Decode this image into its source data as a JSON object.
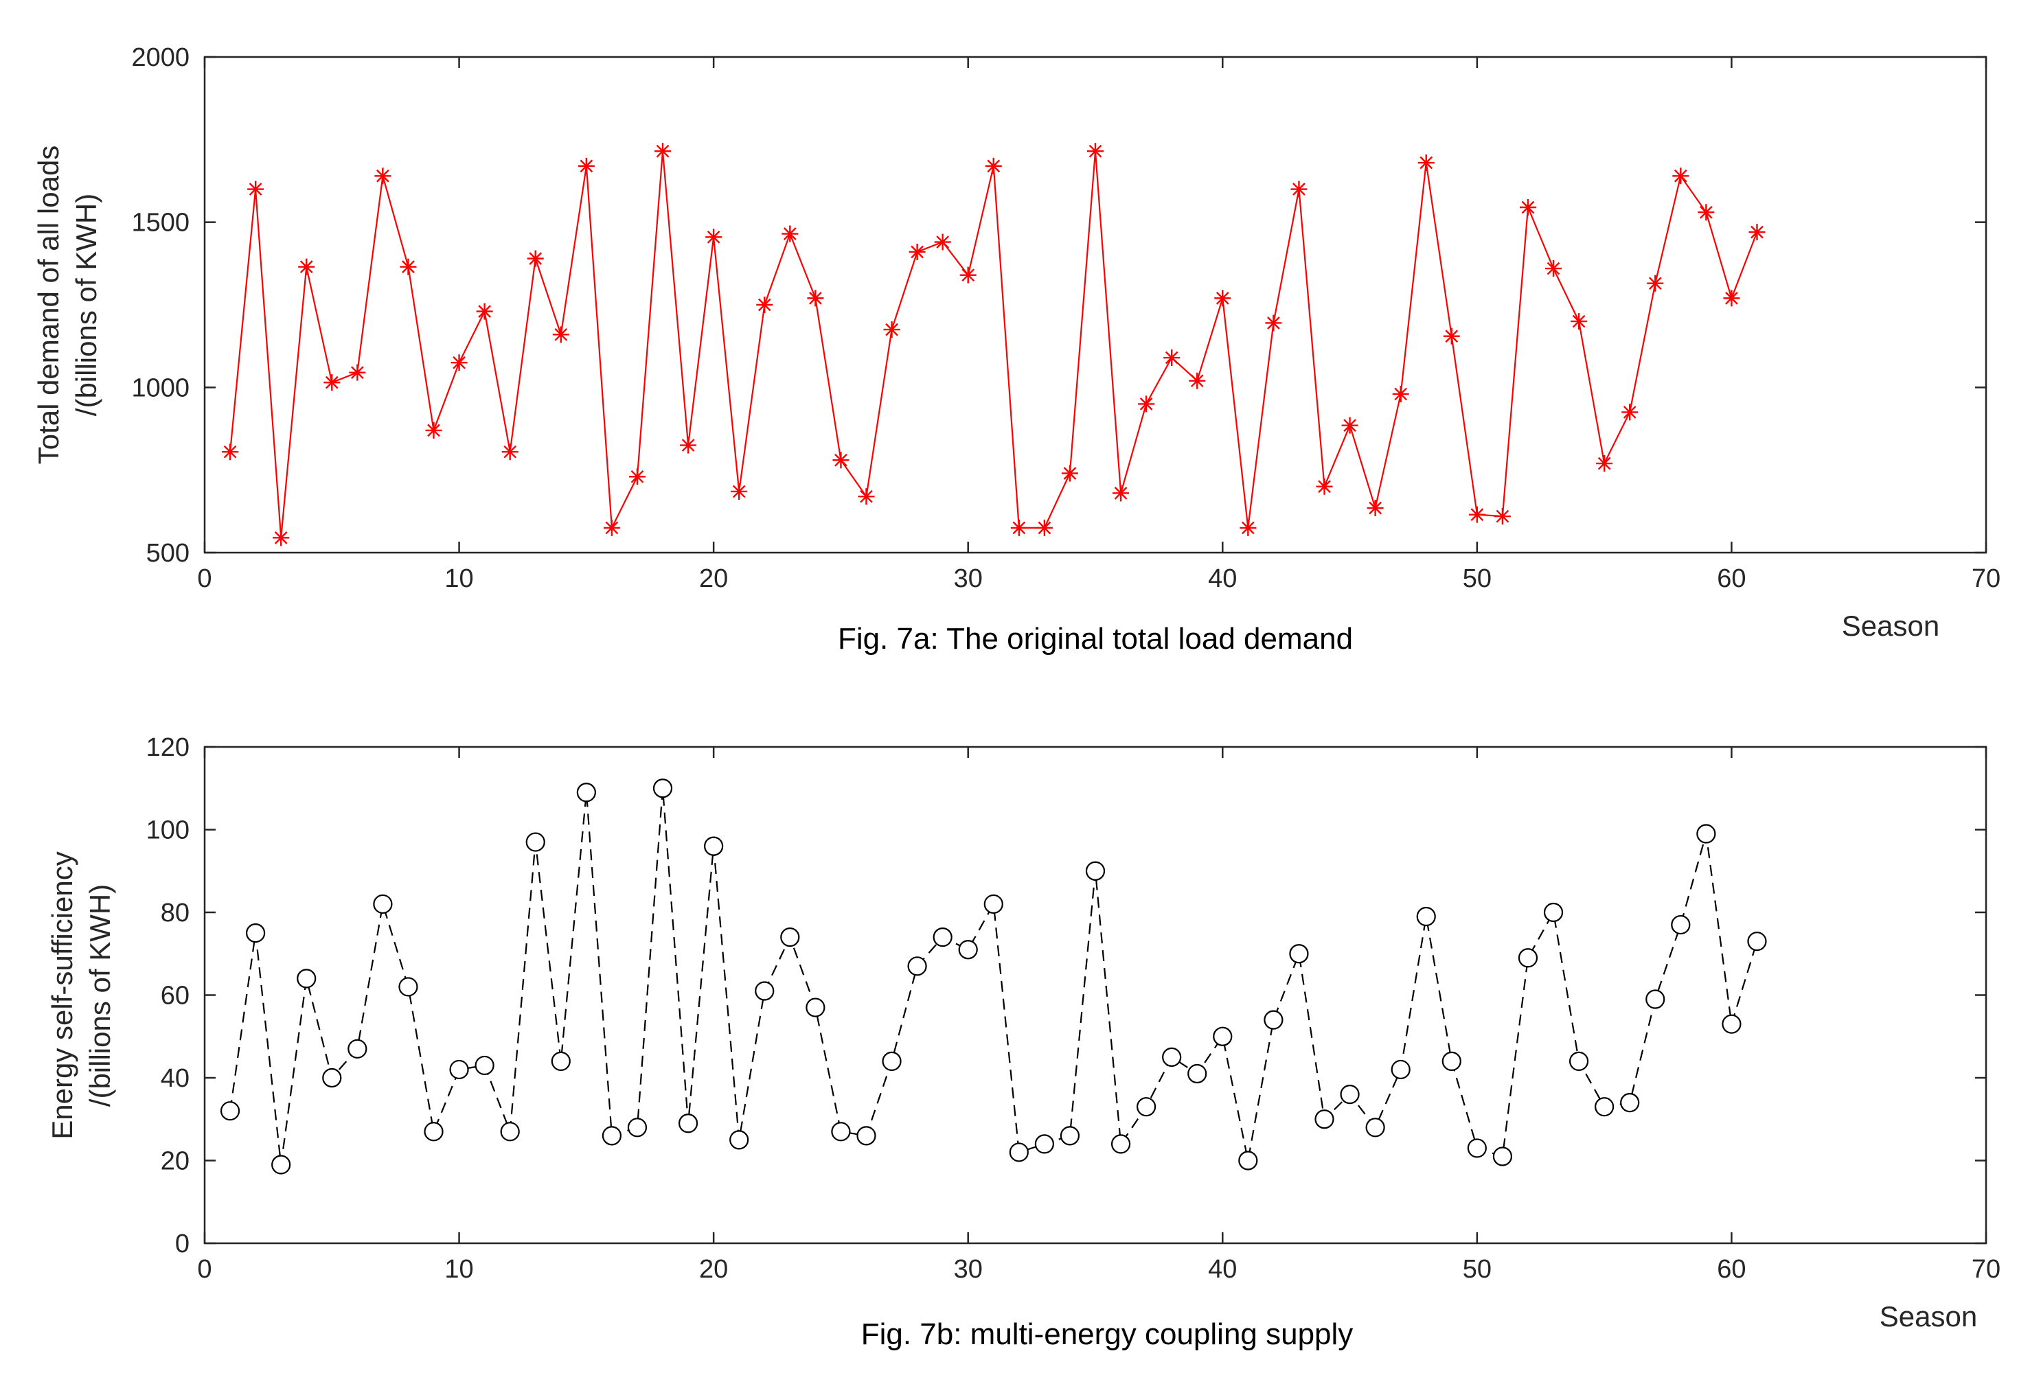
{
  "chart_data": [
    {
      "type": "line",
      "title": "",
      "caption": "Fig. 7a: The original total load demand",
      "xlabel": "Season",
      "ylabel_line1": "Total demand of all loads",
      "ylabel_line2": "/(billions of KWH)",
      "xlim": [
        0,
        70
      ],
      "ylim": [
        500,
        2000
      ],
      "xticks": [
        0,
        10,
        20,
        30,
        40,
        50,
        60,
        70
      ],
      "yticks": [
        500,
        1000,
        1500,
        2000
      ],
      "marker": "asterisk",
      "line_style": "solid",
      "color": "#ff0000",
      "grid": false,
      "x": [
        1,
        2,
        3,
        4,
        5,
        6,
        7,
        8,
        9,
        10,
        11,
        12,
        13,
        14,
        15,
        16,
        17,
        18,
        19,
        20,
        21,
        22,
        23,
        24,
        25,
        26,
        27,
        28,
        29,
        30,
        31,
        32,
        33,
        34,
        35,
        36,
        37,
        38,
        39,
        40,
        41,
        42,
        43,
        44,
        45,
        46,
        47,
        48,
        49,
        50,
        51,
        52,
        53,
        54,
        55,
        56,
        57,
        58,
        59,
        60,
        61
      ],
      "values": [
        805,
        1600,
        545,
        1365,
        1015,
        1045,
        1640,
        1365,
        870,
        1075,
        1230,
        805,
        1390,
        1160,
        1670,
        575,
        730,
        1715,
        825,
        1455,
        685,
        1250,
        1465,
        1270,
        780,
        670,
        1175,
        1410,
        1440,
        1340,
        1670,
        575,
        575,
        740,
        1715,
        680,
        950,
        1090,
        1020,
        1270,
        575,
        1195,
        1600,
        700,
        885,
        635,
        980,
        1680,
        1155,
        615,
        610,
        1545,
        1360,
        1200,
        770,
        925,
        1315,
        1640,
        1530,
        1270,
        1470
      ]
    },
    {
      "type": "line",
      "title": "",
      "caption": "Fig. 7b: multi-energy coupling supply",
      "xlabel": "Season",
      "ylabel_line1": "Energy self-sufficiency",
      "ylabel_line2": "/(billions of KWH)",
      "xlim": [
        0,
        70
      ],
      "ylim": [
        0,
        120
      ],
      "xticks": [
        0,
        10,
        20,
        30,
        40,
        50,
        60,
        70
      ],
      "yticks": [
        0,
        20,
        40,
        60,
        80,
        100,
        120
      ],
      "marker": "circle",
      "line_style": "dashed",
      "color": "#000000",
      "grid": false,
      "x": [
        1,
        2,
        3,
        4,
        5,
        6,
        7,
        8,
        9,
        10,
        11,
        12,
        13,
        14,
        15,
        16,
        17,
        18,
        19,
        20,
        21,
        22,
        23,
        24,
        25,
        26,
        27,
        28,
        29,
        30,
        31,
        32,
        33,
        34,
        35,
        36,
        37,
        38,
        39,
        40,
        41,
        42,
        43,
        44,
        45,
        46,
        47,
        48,
        49,
        50,
        51,
        52,
        53,
        54,
        55,
        56,
        57,
        58,
        59,
        60,
        61
      ],
      "values": [
        32,
        75,
        19,
        64,
        40,
        47,
        82,
        62,
        27,
        42,
        43,
        27,
        97,
        44,
        109,
        26,
        28,
        110,
        29,
        96,
        25,
        61,
        74,
        57,
        27,
        26,
        44,
        67,
        74,
        71,
        82,
        22,
        24,
        26,
        90,
        24,
        33,
        45,
        41,
        50,
        20,
        54,
        70,
        30,
        36,
        28,
        42,
        79,
        44,
        23,
        21,
        69,
        80,
        44,
        33,
        34,
        59,
        77,
        99,
        53,
        73
      ]
    }
  ]
}
